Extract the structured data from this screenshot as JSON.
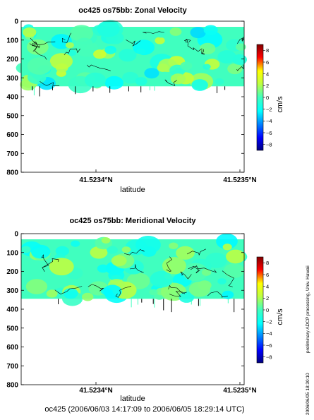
{
  "chart_data": [
    {
      "type": "heatmap",
      "title": "oc425 os75bb: Zonal Velocity",
      "xlabel": "latitude",
      "x_ticks": [
        "41.5234°N",
        "41.5235°N"
      ],
      "y_ticks": [
        "0",
        "100",
        "200",
        "300",
        "400",
        "500",
        "600",
        "700",
        "800"
      ],
      "ylim": [
        800,
        0
      ],
      "data_depth_range": [
        30,
        345
      ],
      "colorbar": {
        "label": "cm/s",
        "ticks": [
          "8",
          "6",
          "4",
          "2",
          "0",
          "−2",
          "−4",
          "−6",
          "−8"
        ],
        "range": [
          -9,
          9
        ]
      }
    },
    {
      "type": "heatmap",
      "title": "oc425 os75bb: Meridional Velocity",
      "xlabel": "latitude",
      "x_ticks": [
        "41.5234°N",
        "41.5235°N"
      ],
      "y_ticks": [
        "0",
        "100",
        "200",
        "300",
        "400",
        "500",
        "600",
        "700",
        "800"
      ],
      "ylim": [
        800,
        0
      ],
      "data_depth_range": [
        30,
        345
      ],
      "colorbar": {
        "label": "cm/s",
        "ticks": [
          "8",
          "6",
          "4",
          "2",
          "0",
          "−2",
          "−4",
          "−6",
          "−8"
        ],
        "range": [
          -9,
          9
        ]
      }
    }
  ],
  "footer": {
    "caption": "oc425 (2006/06/03 14:17:09 to 2006/06/05 18:29:14 UTC)",
    "side_note": "preliminary ADCP processing,   Univ. Hawaii",
    "side_date": "2006/06/05 18:30:10"
  }
}
